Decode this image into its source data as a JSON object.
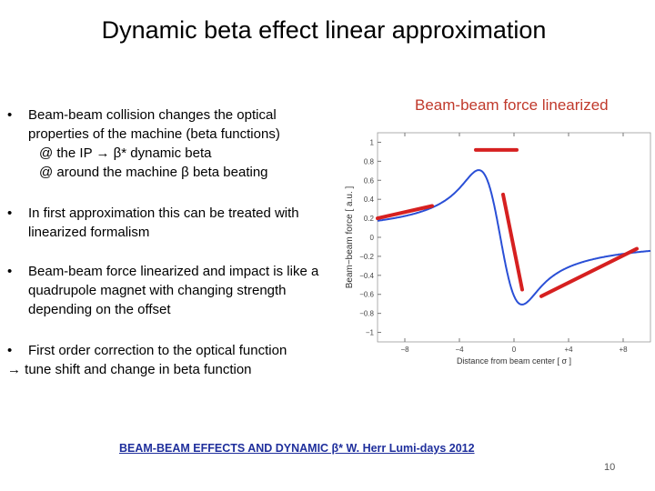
{
  "slide": {
    "title": "Dynamic beta effect linear approximation",
    "bullets": [
      {
        "marker": "•",
        "lines": [
          "Beam-beam collision changes the optical",
          "properties of the machine (beta functions)"
        ],
        "sublines": [
          "@ the IP → β* dynamic beta",
          "@ around the machine β beta beating"
        ]
      },
      {
        "marker": "•",
        "lines": [
          "In first approximation this can be treated with",
          "linearized formalism"
        ]
      },
      {
        "marker": "•",
        "lines": [
          "Beam-beam force linearized and impact is like a",
          "quadrupole magnet with changing strength",
          "depending on the offset"
        ]
      },
      {
        "marker": "•",
        "lines": [
          "First order correction to the optical function",
          "→ tune shift and change in beta function"
        ]
      }
    ],
    "footer_link": "BEAM-BEAM EFFECTS AND DYNAMIC β* W. Herr Lumi-days 2012",
    "page_number": "10"
  },
  "chart_data": {
    "type": "line",
    "title": "Beam-beam force linearized",
    "xlabel": "Distance from beam center [ σ ]",
    "ylabel": "Beam−beam force [ a.u. ]",
    "xlim": [
      -10,
      10
    ],
    "ylim": [
      -1.1,
      1.1
    ],
    "x_ticks": [
      "−8",
      "−4",
      "0",
      "+4",
      "+8"
    ],
    "x_tick_values": [
      -8,
      -4,
      0,
      4,
      8
    ],
    "y_ticks": [
      "1",
      "0.8",
      "0.6",
      "0.4",
      "0.2",
      "0",
      "−0.2",
      "−0.4",
      "−0.6",
      "−0.8",
      "−1"
    ],
    "y_tick_values": [
      1,
      0.8,
      0.6,
      0.4,
      0.2,
      0,
      -0.2,
      -0.4,
      -0.6,
      -0.8,
      -1
    ],
    "curve_color": "#2a4fd6",
    "linearization_color": "#d62020",
    "linearized_segments": [
      {
        "x": [
          -10,
          -6
        ],
        "y": [
          0.2,
          0.33
        ]
      },
      {
        "x": [
          -2.8,
          0.2
        ],
        "y": [
          0.92,
          0.92
        ]
      },
      {
        "x": [
          -0.8,
          0.6
        ],
        "y": [
          0.45,
          -0.55
        ]
      },
      {
        "x": [
          2.0,
          9.0
        ],
        "y": [
          -0.62,
          -0.12
        ]
      }
    ]
  }
}
